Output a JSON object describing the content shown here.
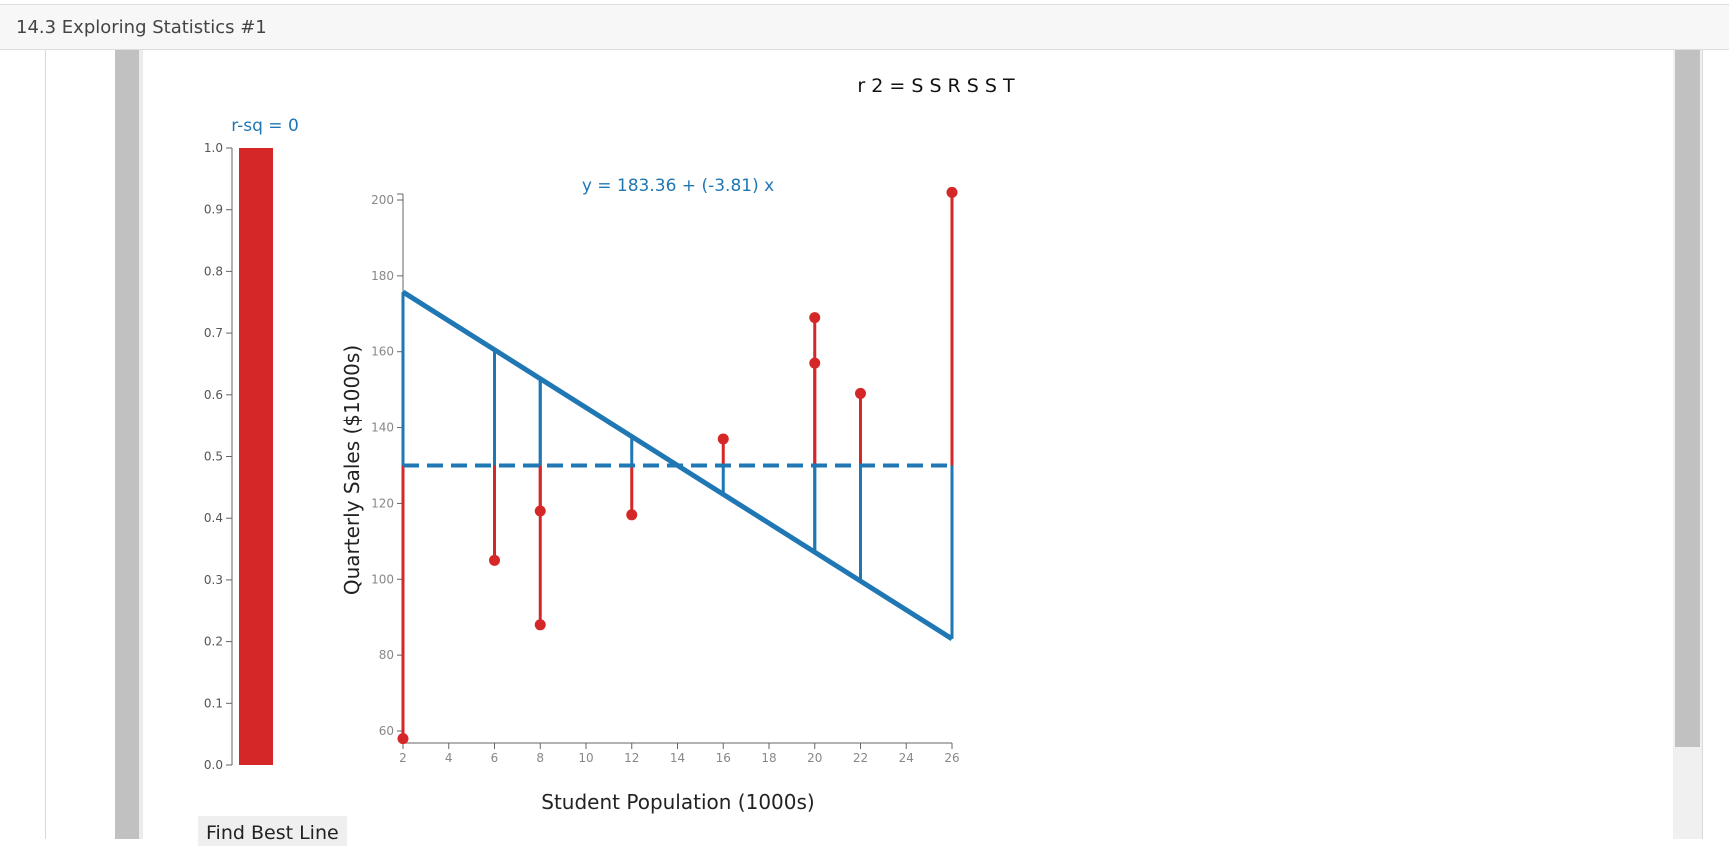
{
  "window": {
    "title": "14.3 Exploring Statistics #1"
  },
  "formula": "r 2 = S S R S S T",
  "rsq_gauge": {
    "label": "r-sq = 0",
    "value": 1.0,
    "ticks": [
      "0.0",
      "0.1",
      "0.2",
      "0.3",
      "0.4",
      "0.5",
      "0.6",
      "0.7",
      "0.8",
      "0.9",
      "1.0"
    ],
    "bar_color": "#d62728",
    "label_color": "#1f77b4"
  },
  "chart_data": {
    "type": "scatter",
    "title": "y = 183.36 + (-3.81) x",
    "xlabel": "Student Population (1000s)",
    "ylabel": "Quarterly Sales ($1000s)",
    "xlim": [
      2,
      26
    ],
    "ylim": [
      60,
      200
    ],
    "x_ticks": [
      "2",
      "4",
      "6",
      "8",
      "10",
      "12",
      "14",
      "16",
      "18",
      "20",
      "22",
      "24",
      "26"
    ],
    "y_ticks": [
      "60",
      "80",
      "100",
      "120",
      "140",
      "160",
      "180",
      "200"
    ],
    "points": [
      {
        "x": 2,
        "y": 58
      },
      {
        "x": 6,
        "y": 105
      },
      {
        "x": 8,
        "y": 88
      },
      {
        "x": 8,
        "y": 118
      },
      {
        "x": 12,
        "y": 117
      },
      {
        "x": 16,
        "y": 137
      },
      {
        "x": 20,
        "y": 157
      },
      {
        "x": 20,
        "y": 169
      },
      {
        "x": 22,
        "y": 149
      },
      {
        "x": 26,
        "y": 202
      }
    ],
    "regression_line": {
      "intercept": 183.36,
      "slope": -3.81
    },
    "mean_line": 130,
    "colors": {
      "points": "#d62728",
      "line": "#1f77b4",
      "axis": "#666666",
      "tick_text": "#888888"
    }
  },
  "buttons": {
    "find_best_line": "Find Best Line"
  }
}
